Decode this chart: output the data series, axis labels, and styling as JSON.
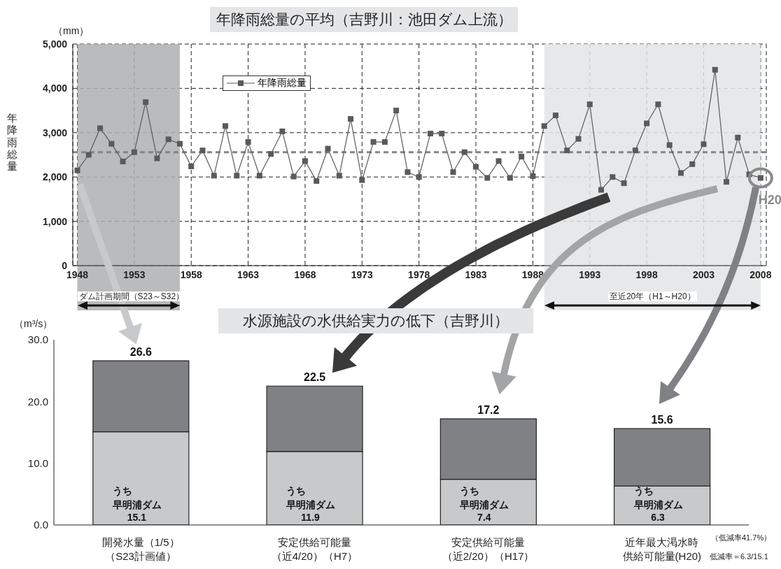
{
  "chart_data": [
    {
      "type": "line",
      "title": "年降雨総量の平均（吉野川：池田ダム上流）",
      "ylabel": "年降雨総量",
      "x": [
        1948,
        1949,
        1950,
        1951,
        1952,
        1953,
        1954,
        1955,
        1956,
        1957,
        1958,
        1959,
        1960,
        1961,
        1962,
        1963,
        1964,
        1965,
        1966,
        1967,
        1968,
        1969,
        1970,
        1971,
        1972,
        1973,
        1974,
        1975,
        1976,
        1977,
        1978,
        1979,
        1980,
        1981,
        1982,
        1983,
        1984,
        1985,
        1986,
        1987,
        1988,
        1989,
        1990,
        1991,
        1992,
        1993,
        1994,
        1995,
        1996,
        1997,
        1998,
        1999,
        2000,
        2001,
        2002,
        2003,
        2004,
        2005,
        2006,
        2007,
        2008
      ],
      "series": [
        {
          "name": "年降雨総量",
          "color": "#5a5a5a",
          "values": [
            2150,
            2500,
            3100,
            2750,
            2350,
            2560,
            3690,
            2420,
            2850,
            2750,
            2240,
            2600,
            2030,
            3150,
            2030,
            2790,
            2030,
            2520,
            3030,
            2010,
            2360,
            1910,
            2640,
            2030,
            3310,
            1930,
            2790,
            2790,
            3500,
            2110,
            2000,
            2980,
            2980,
            2110,
            2560,
            2230,
            1980,
            2360,
            1980,
            2460,
            2020,
            3150,
            3390,
            2600,
            2860,
            3640,
            1710,
            2000,
            1860,
            2600,
            3210,
            3640,
            2720,
            2090,
            2290,
            2740,
            4420,
            1890,
            2890,
            2060,
            1980
          ]
        }
      ],
      "xlim": [
        1947.6,
        2008.5
      ],
      "xticks": [
        1948,
        1953,
        1958,
        1963,
        1968,
        1973,
        1978,
        1983,
        1988,
        1993,
        1998,
        2003,
        2008
      ],
      "ylim": [
        0,
        5000
      ],
      "yticks": [
        0,
        {
          "value": 1000,
          "label": "1,000"
        },
        {
          "value": 2000,
          "label": "2,000"
        },
        {
          "value": 3000,
          "label": "3,000"
        },
        {
          "value": 4000,
          "label": "4,000"
        },
        {
          "value": 5000,
          "label": "5,000"
        }
      ],
      "grid": true,
      "legend": "top left",
      "marker": "square",
      "line_style": "solid",
      "bands": [
        {
          "axis": "x",
          "from": 1948,
          "to": 1957,
          "label": "ダム計画期間（S23～S32）",
          "color": "#aeafb2"
        },
        {
          "axis": "x",
          "from": 1989,
          "to": 2008,
          "label": "至近20年（H1～H20）",
          "color": "#e3e4e6"
        }
      ],
      "ref_lines": [
        {
          "axis": "y",
          "value": 2560,
          "color": "#858585",
          "line_style": "dashed"
        }
      ],
      "annotations": [
        "（mm）",
        {
          "text": "H20",
          "x": 2008,
          "y": 1980
        }
      ]
    },
    {
      "type": "bar",
      "title": "水源施設の水供給実力の低下（吉野川）",
      "categories": [
        "開発水量（1/5）（S23計画値）",
        "安定供給可能量（近4/20）（H7）",
        "安定供給可能量（近2/20）（H17）",
        "近年最大渇水時供給可能量(H20)"
      ],
      "stacked": true,
      "series": [
        {
          "name": "うち早明浦ダム",
          "color": "#c8c9cb",
          "values": [
            15.1,
            11.9,
            7.4,
            6.3
          ],
          "value_labels": [
            "15.1",
            "11.9",
            "7.4",
            "6.3"
          ]
        },
        {
          "color": "#808184",
          "values": [
            11.5,
            10.6,
            9.8,
            9.3
          ]
        }
      ],
      "totals": [
        "26.6",
        "22.5",
        "17.2",
        "15.6"
      ],
      "ylim": [
        0,
        30
      ],
      "yticks": [
        {
          "value": 0,
          "label": "0.0"
        },
        {
          "value": 10,
          "label": "10.0"
        },
        {
          "value": 20,
          "label": "20.0"
        },
        {
          "value": 30,
          "label": "30.0"
        }
      ],
      "annotations": [
        "（m³/s）",
        "（低減率41.7%）",
        "低減率＝6.3/15.1"
      ]
    }
  ]
}
